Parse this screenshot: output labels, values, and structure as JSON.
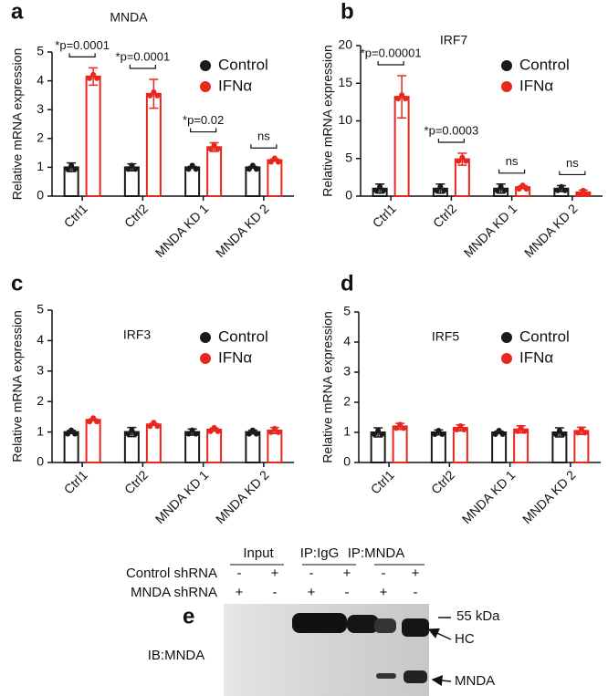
{
  "chart_data": [
    {
      "type": "bar",
      "panel_label": "a",
      "title": "MNDA",
      "y_label": "Relative mRNA expression",
      "categories": [
        "Ctrl1",
        "Ctrl2",
        "MNDA KD 1",
        "MNDA KD 2"
      ],
      "series": [
        {
          "name": "Control",
          "color": "#1a1a1a",
          "values": [
            1.0,
            1.0,
            1.0,
            1.0
          ],
          "errors": [
            0.15,
            0.12,
            0.03,
            0.03
          ]
        },
        {
          "name": "IFNα",
          "color": "#e8281e",
          "values": [
            4.15,
            3.55,
            1.7,
            1.25
          ],
          "errors": [
            0.3,
            0.5,
            0.15,
            0.04
          ]
        }
      ],
      "significance": [
        "*p=0.0001",
        "*p=0.0001",
        "*p=0.02",
        "ns"
      ],
      "ylim": [
        0,
        5
      ],
      "yticks": [
        0,
        1,
        2,
        3,
        4,
        5
      ]
    },
    {
      "type": "bar",
      "panel_label": "b",
      "title": "IRF7",
      "y_label": "Relative mRNA expression",
      "categories": [
        "Ctrl1",
        "Ctrl2",
        "MNDA KD 1",
        "MNDA KD 2"
      ],
      "series": [
        {
          "name": "Control",
          "color": "#1a1a1a",
          "values": [
            1.0,
            1.0,
            1.0,
            1.0
          ],
          "errors": [
            0.6,
            0.6,
            0.6,
            0.4
          ]
        },
        {
          "name": "IFNα",
          "color": "#e8281e",
          "values": [
            13.2,
            4.9,
            1.2,
            0.5
          ],
          "errors": [
            2.8,
            0.8,
            0.2,
            0.3
          ]
        }
      ],
      "significance": [
        "*p=0.00001",
        "*p=0.0003",
        "ns",
        "ns"
      ],
      "ylim": [
        0,
        20
      ],
      "yticks": [
        0,
        5,
        10,
        15,
        20
      ]
    },
    {
      "type": "bar",
      "panel_label": "c",
      "title": "IRF3",
      "y_label": "Relative mRNA expression",
      "categories": [
        "Ctrl1",
        "Ctrl2",
        "MNDA KD 1",
        "MNDA KD 2"
      ],
      "series": [
        {
          "name": "Control",
          "color": "#1a1a1a",
          "values": [
            1.0,
            1.0,
            1.0,
            1.0
          ],
          "errors": [
            0.05,
            0.15,
            0.1,
            0.06
          ]
        },
        {
          "name": "IFNα",
          "color": "#e8281e",
          "values": [
            1.4,
            1.25,
            1.08,
            1.05
          ],
          "errors": [
            0.03,
            0.03,
            0.05,
            0.1
          ]
        }
      ],
      "ylim": [
        0,
        5
      ],
      "yticks": [
        0,
        1,
        2,
        3,
        4,
        5
      ]
    },
    {
      "type": "bar",
      "panel_label": "d",
      "title": "IRF5",
      "y_label": "Relative mRNA expression",
      "categories": [
        "Ctrl1",
        "Ctrl2",
        "MNDA KD 1",
        "MNDA KD 2"
      ],
      "series": [
        {
          "name": "Control",
          "color": "#1a1a1a",
          "values": [
            1.0,
            1.0,
            1.0,
            1.0
          ],
          "errors": [
            0.15,
            0.08,
            0.04,
            0.15
          ]
        },
        {
          "name": "IFNα",
          "color": "#e8281e",
          "values": [
            1.2,
            1.15,
            1.1,
            1.05
          ],
          "errors": [
            0.1,
            0.1,
            0.12,
            0.12
          ]
        }
      ],
      "ylim": [
        0,
        5
      ],
      "yticks": [
        0,
        1,
        2,
        3,
        4,
        5
      ]
    }
  ],
  "blot": {
    "panel_label": "e",
    "column_groups": [
      "Input",
      "IP:IgG",
      "IP:MNDA"
    ],
    "rows": [
      {
        "label": "Control shRNA",
        "signs": [
          "-",
          "+",
          "-",
          "+",
          "-",
          "+"
        ]
      },
      {
        "label": "MNDA shRNA",
        "signs": [
          "+",
          "-",
          "+",
          "-",
          "+",
          "-"
        ]
      }
    ],
    "antibody": "IB:MNDA",
    "markers": [
      "55 kDa",
      "HC",
      "MNDA"
    ]
  }
}
